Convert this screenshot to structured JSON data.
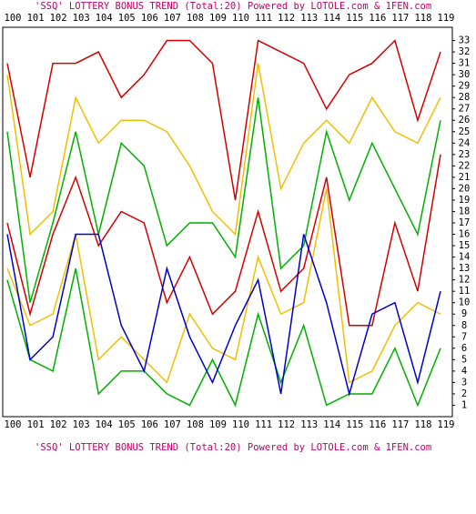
{
  "chart_data": {
    "type": "line",
    "title": "'SSQ' LOTTERY BONUS TREND (Total:20)  Powered by LOTOLE.com & 1FEN.com",
    "bottom_title": "'SSQ' LOTTERY BONUS TREND (Total:20)  Powered by LOTOLE.com & 1FEN.com",
    "categories": [
      "100",
      "101",
      "102",
      "103",
      "104",
      "105",
      "106",
      "107",
      "108",
      "109",
      "110",
      "111",
      "112",
      "113",
      "114",
      "115",
      "116",
      "117",
      "118",
      "119"
    ],
    "ylim": [
      0,
      34
    ],
    "yticks": [
      1,
      2,
      3,
      4,
      5,
      6,
      7,
      8,
      9,
      10,
      11,
      12,
      13,
      14,
      15,
      16,
      17,
      18,
      19,
      20,
      21,
      22,
      23,
      24,
      25,
      26,
      27,
      28,
      29,
      30,
      31,
      32,
      33
    ],
    "series": [
      {
        "color": "#d40000",
        "values": [
          31,
          21,
          31,
          31,
          32,
          28,
          30,
          33,
          33,
          31,
          19,
          33,
          32,
          31,
          27,
          30,
          31,
          33,
          26,
          32
        ]
      },
      {
        "color": "#f0c000",
        "values": [
          30,
          16,
          18,
          28,
          24,
          26,
          26,
          25,
          22,
          18,
          16,
          31,
          20,
          24,
          26,
          24,
          28,
          25,
          24,
          28
        ]
      },
      {
        "color": "#00b000",
        "values": [
          25,
          10,
          17,
          25,
          16,
          24,
          22,
          15,
          17,
          17,
          14,
          28,
          13,
          15,
          25,
          19,
          24,
          20,
          16,
          26
        ]
      },
      {
        "color": "#d40000",
        "values": [
          17,
          9,
          16,
          21,
          15,
          18,
          17,
          10,
          14,
          9,
          11,
          18,
          11,
          13,
          21,
          8,
          8,
          17,
          11,
          23
        ]
      },
      {
        "color": "#f0c000",
        "values": [
          13,
          8,
          9,
          16,
          5,
          7,
          5,
          3,
          9,
          6,
          5,
          14,
          9,
          10,
          20,
          3,
          4,
          8,
          10,
          9
        ]
      },
      {
        "color": "#00b000",
        "values": [
          12,
          5,
          4,
          13,
          2,
          4,
          4,
          2,
          1,
          5,
          1,
          9,
          3,
          8,
          1,
          2,
          2,
          6,
          1,
          6
        ]
      },
      {
        "color": "#0000c8",
        "values": [
          16,
          5,
          7,
          16,
          16,
          8,
          4,
          13,
          7,
          3,
          8,
          12,
          2,
          16,
          10,
          2,
          9,
          10,
          3,
          11
        ]
      }
    ]
  }
}
